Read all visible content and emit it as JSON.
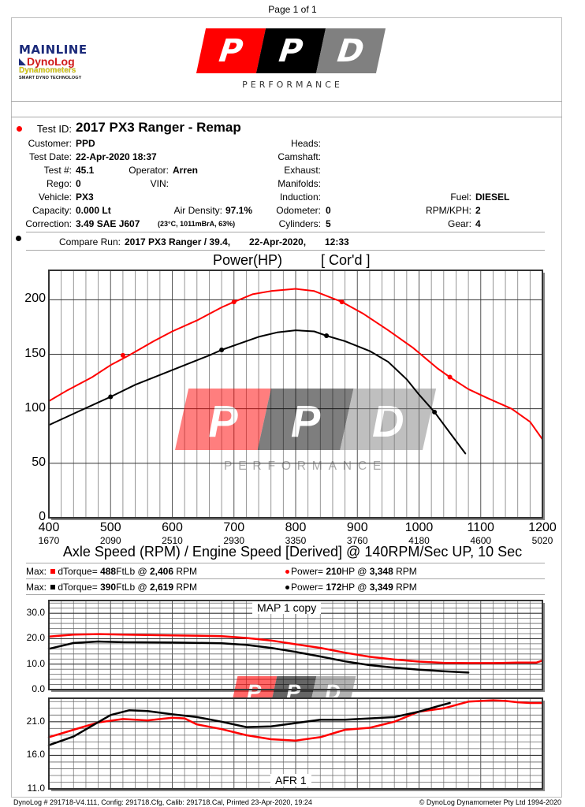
{
  "page": {
    "label": "Page 1 of 1"
  },
  "header": {
    "mainline_logo": {
      "line1": "MAINLINE",
      "line2": "DynoLog",
      "line3": "Dynamometers",
      "line4": "SMART DYNO TECHNOLOGY"
    },
    "ppd_logo": {
      "letters": [
        "P",
        "P",
        "D"
      ],
      "tagline": "PERFORMANCE",
      "colors": {
        "seg1": "#ff0000",
        "seg2": "#000000",
        "seg3": "#808080"
      }
    }
  },
  "test_info": {
    "test_id_label": "Test ID:",
    "test_id": "2017 PX3 Ranger - Remap",
    "customer_label": "Customer:",
    "customer": "PPD",
    "test_date_label": "Test Date:",
    "test_date": "22-Apr-2020 18:37",
    "test_num_label": "Test #:",
    "test_num": "45.1",
    "operator_label": "Operator:",
    "operator": "Arren",
    "rego_label": "Rego:",
    "rego": "0",
    "vin_label": "VIN:",
    "vin": "",
    "vehicle_label": "Vehicle:",
    "vehicle": "PX3",
    "capacity_label": "Capacity:",
    "capacity": "0.000 Lt",
    "air_density_label": "Air Density:",
    "air_density": "97.1%",
    "correction_label": "Correction:",
    "correction": "3.49 SAE J607",
    "correction_detail": "(23°C, 1011mBrA, 63%)",
    "heads_label": "Heads:",
    "heads": "",
    "camshaft_label": "Camshaft:",
    "camshaft": "",
    "exhaust_label": "Exhaust:",
    "exhaust": "",
    "manifolds_label": "Manifolds:",
    "manifolds": "",
    "induction_label": "Induction:",
    "induction": "",
    "odometer_label": "Odometer:",
    "odometer": "0",
    "cylinders_label": "Cylinders:",
    "cylinders": "5",
    "fuel_label": "Fuel:",
    "fuel": "DIESEL",
    "rpm_kph_label": "RPM/KPH:",
    "rpm_kph": "2",
    "gear_label": "Gear:",
    "gear": "4",
    "compare_label": "Compare Run:",
    "compare_name": "2017 PX3 Ranger / 39.4,",
    "compare_date": "22-Apr-2020,",
    "compare_time": "12:33"
  },
  "summary": {
    "rows": [
      {
        "max": "Max:",
        "torque_label": "dTorque=",
        "torque": "488",
        "torque_unit": "FtLb @",
        "torque_rpm": "2,406",
        "rpm_unit": "RPM",
        "power_label": "Power=",
        "power": "210",
        "power_unit": "HP @",
        "power_rpm": "3,348",
        "power_rpm_unit": "RPM",
        "color": "#ff0000"
      },
      {
        "max": "Max:",
        "torque_label": "dTorque=",
        "torque": "390",
        "torque_unit": "FtLb @",
        "torque_rpm": "2,619",
        "rpm_unit": "RPM",
        "power_label": "Power=",
        "power": "172",
        "power_unit": "HP @",
        "power_rpm": "3,349",
        "power_rpm_unit": "RPM",
        "color": "#000000"
      }
    ]
  },
  "chart_data": [
    {
      "type": "line",
      "title": "Power(HP)",
      "subtitle": "[ Cor'd ]",
      "xlabel": "Axle Speed (RPM) / Engine Speed [Derived] @ 140RPM/Sec UP, 10 Sec",
      "ylabel": "Power(HP)",
      "x_ticks": [
        400,
        500,
        600,
        700,
        800,
        900,
        1000,
        1100,
        1200
      ],
      "x_ticks_secondary": [
        1670,
        2090,
        2510,
        2930,
        3350,
        3760,
        4180,
        4600,
        5020
      ],
      "y_ticks": [
        0,
        50,
        100,
        150,
        200
      ],
      "xlim": [
        400,
        1200
      ],
      "ylim": [
        0,
        227
      ],
      "grid": true,
      "series": [
        {
          "name": "2017 PX3 Ranger - Remap",
          "color": "#ff0000",
          "x": [
            400,
            430,
            470,
            500,
            530,
            570,
            600,
            640,
            680,
            700,
            730,
            760,
            800,
            830,
            875,
            910,
            950,
            990,
            1030,
            1050,
            1080,
            1110,
            1150,
            1180,
            1200
          ],
          "y": [
            107,
            117,
            129,
            140,
            149,
            162,
            171,
            181,
            193,
            198,
            205,
            208,
            210,
            208,
            198,
            187,
            172,
            156,
            137,
            129,
            118,
            110,
            100,
            88,
            72
          ],
          "markers_x": [
            520,
            700,
            875,
            1050
          ],
          "markers_y": [
            149,
            198,
            198,
            129
          ]
        },
        {
          "name": "2017 PX3 Ranger / 39.4",
          "color": "#000000",
          "x": [
            400,
            450,
            500,
            540,
            580,
            620,
            660,
            680,
            710,
            740,
            770,
            800,
            830,
            850,
            880,
            920,
            950,
            980,
            1000,
            1025,
            1050,
            1075
          ],
          "y": [
            85,
            98,
            111,
            122,
            131,
            140,
            149,
            154,
            160,
            166,
            170,
            172,
            171,
            167,
            162,
            153,
            143,
            127,
            113,
            97,
            78,
            59
          ],
          "markers_x": [
            500,
            680,
            850,
            1025
          ],
          "markers_y": [
            111,
            154,
            167,
            97
          ]
        }
      ]
    },
    {
      "type": "line",
      "title": "MAP 1 copy",
      "y_ticks": [
        0.0,
        10.0,
        20.0,
        30.0
      ],
      "xlim": [
        400,
        1200
      ],
      "ylim": [
        0,
        35
      ],
      "grid": true,
      "series": [
        {
          "name": "Remap",
          "color": "#ff0000",
          "x": [
            400,
            440,
            480,
            520,
            600,
            680,
            720,
            760,
            800,
            840,
            880,
            920,
            960,
            1000,
            1040,
            1080,
            1120,
            1160,
            1190,
            1200
          ],
          "y": [
            20.8,
            21.6,
            21.8,
            21.6,
            21.3,
            21.0,
            20.3,
            19.3,
            17.8,
            16.4,
            14.5,
            12.9,
            11.8,
            11.0,
            10.5,
            10.4,
            10.4,
            10.6,
            10.6,
            11.4
          ]
        },
        {
          "name": "Compare",
          "color": "#000000",
          "x": [
            400,
            440,
            480,
            520,
            600,
            680,
            720,
            760,
            800,
            840,
            880,
            920,
            960,
            1000,
            1040,
            1080
          ],
          "y": [
            16.0,
            18.3,
            18.9,
            18.6,
            18.5,
            18.2,
            17.6,
            16.4,
            14.8,
            13.0,
            11.1,
            9.6,
            8.6,
            7.8,
            7.2,
            6.7
          ]
        }
      ]
    },
    {
      "type": "line",
      "title": "AFR 1",
      "y_ticks": [
        11.0,
        16.0,
        21.0
      ],
      "xlim": [
        400,
        1200
      ],
      "ylim": [
        11,
        24.5
      ],
      "grid": true,
      "series": [
        {
          "name": "Remap",
          "color": "#ff0000",
          "x": [
            400,
            440,
            480,
            520,
            560,
            600,
            620,
            640,
            680,
            720,
            760,
            800,
            840,
            880,
            920,
            960,
            1000,
            1040,
            1080,
            1120,
            1140,
            1160,
            1180,
            1200
          ],
          "y": [
            18.7,
            19.8,
            20.9,
            21.4,
            21.2,
            21.6,
            21.5,
            20.6,
            19.9,
            19.0,
            18.4,
            18.2,
            18.7,
            19.8,
            20.1,
            21.0,
            22.5,
            23.0,
            24.0,
            24.2,
            24.1,
            23.9,
            23.8,
            23.8
          ]
        },
        {
          "name": "Compare",
          "color": "#000000",
          "x": [
            400,
            440,
            470,
            500,
            530,
            560,
            600,
            640,
            680,
            720,
            760,
            800,
            840,
            880,
            920,
            960,
            1000,
            1030,
            1050
          ],
          "y": [
            17.5,
            18.8,
            20.4,
            22.0,
            22.7,
            22.6,
            22.1,
            21.7,
            21.0,
            20.2,
            20.3,
            20.8,
            21.3,
            21.3,
            21.5,
            21.7,
            22.5,
            23.3,
            23.8
          ]
        }
      ]
    }
  ],
  "footer": {
    "left": "DynoLog # 291718-V4.111, Config: 291718.Cfg, Calib: 291718.Cal, Printed 23-Apr-2020, 19:24",
    "right": "© DynoLog Dynamometer Pty Ltd 1994-2020"
  }
}
